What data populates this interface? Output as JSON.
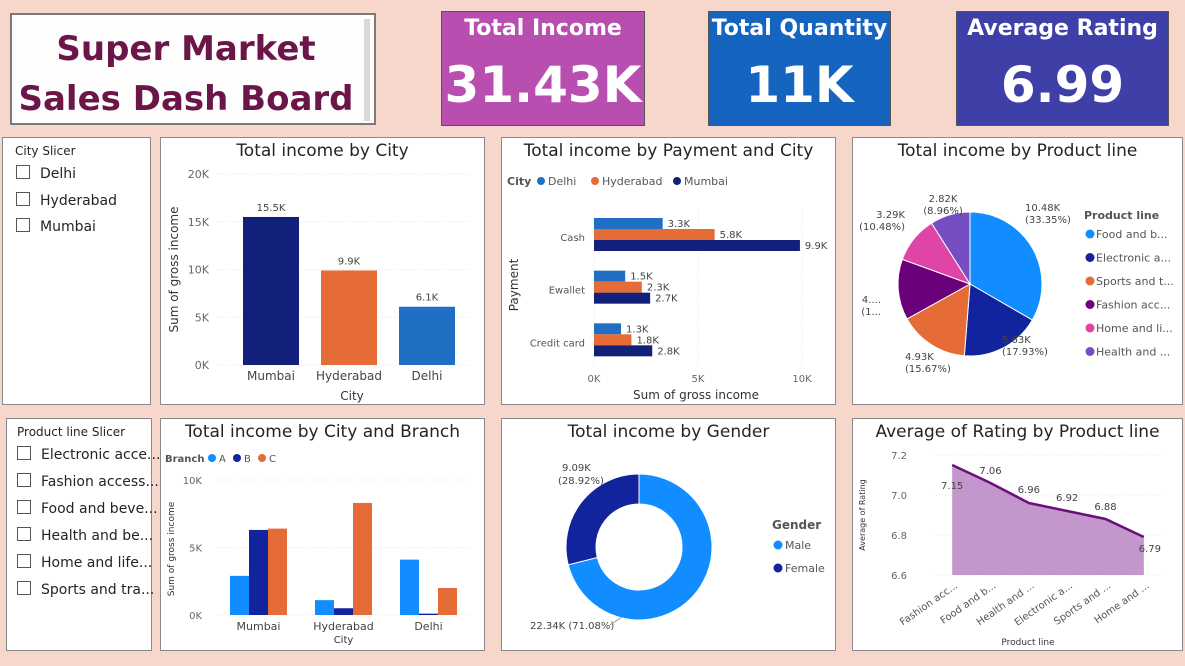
{
  "header": {
    "title_line1": "Super Market",
    "title_line2": "Sales Dash Board"
  },
  "kpis": [
    {
      "label": "Total Income",
      "value": "31.43K",
      "color": "#b84fb0"
    },
    {
      "label": "Total Quantity",
      "value": "11K",
      "color": "#1565c0"
    },
    {
      "label": "Average Rating",
      "value": "6.99",
      "color": "#3f3fa8"
    }
  ],
  "city_slicer": {
    "title": "City Slicer",
    "items": [
      "Delhi",
      "Hyderabad",
      "Mumbai"
    ]
  },
  "product_slicer": {
    "title": "Product line Slicer",
    "items": [
      "Electronic acce...",
      "Fashion access...",
      "Food and beve...",
      "Health and be...",
      "Home and life...",
      "Sports and tra..."
    ]
  },
  "colors": {
    "navy": "#12207a",
    "orange": "#e66c37",
    "blue": "#1f6fc5",
    "light_blue": "#118dff",
    "dark_purple": "#6b007b",
    "pink": "#e044a7",
    "violet": "#744ec2",
    "area_fill": "#c397cc",
    "area_line": "#6b0f7a"
  },
  "chart_data": [
    {
      "id": "income_by_city",
      "type": "bar",
      "title": "Total income by City",
      "xlabel": "City",
      "ylabel": "Sum of gross income",
      "categories": [
        "Mumbai",
        "Hyderabad",
        "Delhi"
      ],
      "values": [
        15.5,
        9.9,
        6.1
      ],
      "data_labels": [
        "15.5K",
        "9.9K",
        "6.1K"
      ],
      "bar_colors": [
        "#12207a",
        "#e66c37",
        "#1f6fc5"
      ],
      "ylim": [
        0,
        20
      ],
      "yticks": [
        "0K",
        "5K",
        "10K",
        "15K",
        "20K"
      ],
      "grid": true
    },
    {
      "id": "income_by_payment_city",
      "type": "bar",
      "orientation": "horizontal",
      "title": "Total income by Payment and City",
      "xlabel": "Sum of gross income",
      "ylabel": "Payment",
      "legend_title": "City",
      "legend_position": "top-left",
      "categories": [
        "Cash",
        "Ewallet",
        "Credit card"
      ],
      "series": [
        {
          "name": "Delhi",
          "color": "#1f6fc5",
          "values": [
            3.3,
            1.5,
            1.3
          ],
          "labels": [
            "3.3K",
            "1.5K",
            "1.3K"
          ]
        },
        {
          "name": "Hyderabad",
          "color": "#e66c37",
          "values": [
            5.8,
            2.3,
            1.8
          ],
          "labels": [
            "5.8K",
            "2.3K",
            "1.8K"
          ]
        },
        {
          "name": "Mumbai",
          "color": "#12207a",
          "values": [
            9.9,
            2.7,
            2.8
          ],
          "labels": [
            "9.9K",
            "2.7K",
            "2.8K"
          ]
        }
      ],
      "xlim": [
        0,
        10
      ],
      "xticks": [
        "0K",
        "5K",
        "10K"
      ]
    },
    {
      "id": "income_by_product_line",
      "type": "pie",
      "title": "Total income by Product line",
      "legend_title": "Product line",
      "legend_position": "right",
      "slices": [
        {
          "name": "Food and b...",
          "value": 10.48,
          "label1": "10.48K",
          "label2": "(33.35%)",
          "color": "#118dff"
        },
        {
          "name": "Electronic a...",
          "value": 5.63,
          "label1": "5.63K",
          "label2": "(17.93%)",
          "color": "#12239e"
        },
        {
          "name": "Sports and t...",
          "value": 4.93,
          "label1": "4.93K",
          "label2": "(15.67%)",
          "color": "#e66c37"
        },
        {
          "name": "Fashion acc...",
          "value": 4.28,
          "label1": "4....",
          "label2": "(1...",
          "color": "#6b007b"
        },
        {
          "name": "Home and li...",
          "value": 3.29,
          "label1": "3.29K",
          "label2": "(10.48%)",
          "color": "#e044a7"
        },
        {
          "name": "Health and ...",
          "value": 2.82,
          "label1": "2.82K",
          "label2": "(8.96%)",
          "color": "#744ec2"
        }
      ]
    },
    {
      "id": "income_by_city_branch",
      "type": "bar",
      "title": "Total income by City and Branch",
      "xlabel": "City",
      "ylabel": "Sum of gross income",
      "legend_title": "Branch",
      "legend_position": "top-left",
      "categories": [
        "Mumbai",
        "Hyderabad",
        "Delhi"
      ],
      "series": [
        {
          "name": "A",
          "color": "#118dff",
          "values": [
            2.9,
            1.1,
            4.1
          ]
        },
        {
          "name": "B",
          "color": "#12239e",
          "values": [
            6.3,
            0.5,
            0.1
          ]
        },
        {
          "name": "C",
          "color": "#e66c37",
          "values": [
            6.4,
            8.3,
            2.0
          ]
        }
      ],
      "ylim": [
        0,
        10
      ],
      "yticks": [
        "0K",
        "5K",
        "10K"
      ]
    },
    {
      "id": "income_by_gender",
      "type": "pie",
      "subtype": "donut",
      "title": "Total income by Gender",
      "legend_title": "Gender",
      "legend_position": "right",
      "slices": [
        {
          "name": "Male",
          "value": 22.34,
          "label": "22.34K (71.08%)",
          "color": "#118dff"
        },
        {
          "name": "Female",
          "value": 9.09,
          "label1": "9.09K",
          "label2": "(28.92%)",
          "color": "#12239e"
        }
      ]
    },
    {
      "id": "rating_by_product_line",
      "type": "area",
      "title": "Average of Rating by Product line",
      "xlabel": "Product line",
      "ylabel": "Average of Rating",
      "categories": [
        "Fashion acc...",
        "Food and b...",
        "Health and ...",
        "Electronic a...",
        "Sports and ...",
        "Home and ..."
      ],
      "values": [
        7.15,
        7.06,
        6.96,
        6.92,
        6.88,
        6.79
      ],
      "data_labels": [
        "7.15",
        "7.06",
        "6.96",
        "6.92",
        "6.88",
        "6.79"
      ],
      "ylim": [
        6.6,
        7.2
      ],
      "yticks": [
        "6.6",
        "6.8",
        "7.0",
        "7.2"
      ]
    }
  ]
}
